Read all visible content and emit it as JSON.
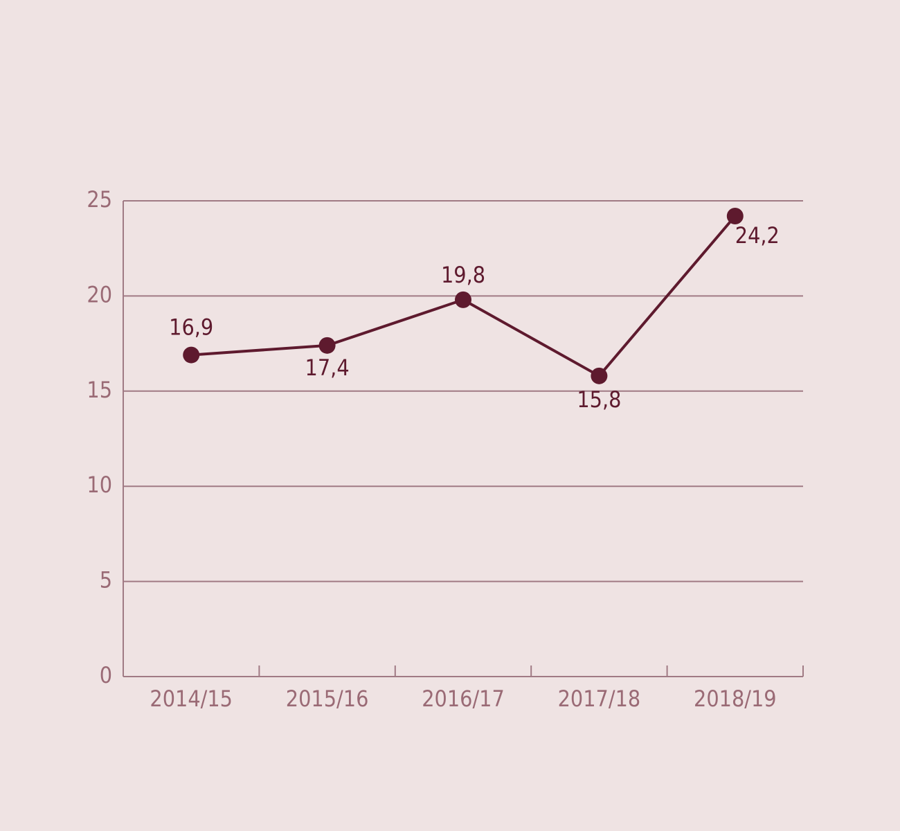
{
  "chart_data": {
    "type": "line",
    "categories": [
      "2014/15",
      "2015/16",
      "2016/17",
      "2017/18",
      "2018/19"
    ],
    "values": [
      16.9,
      17.4,
      19.8,
      15.8,
      24.2
    ],
    "value_labels": [
      "16,9",
      "17,4",
      "19,8",
      "15,8",
      "24,2"
    ],
    "color": "#5e1a2e",
    "ylim": [
      0,
      25
    ],
    "yticks": [
      0,
      5,
      10,
      15,
      20,
      25
    ],
    "grid": true
  }
}
